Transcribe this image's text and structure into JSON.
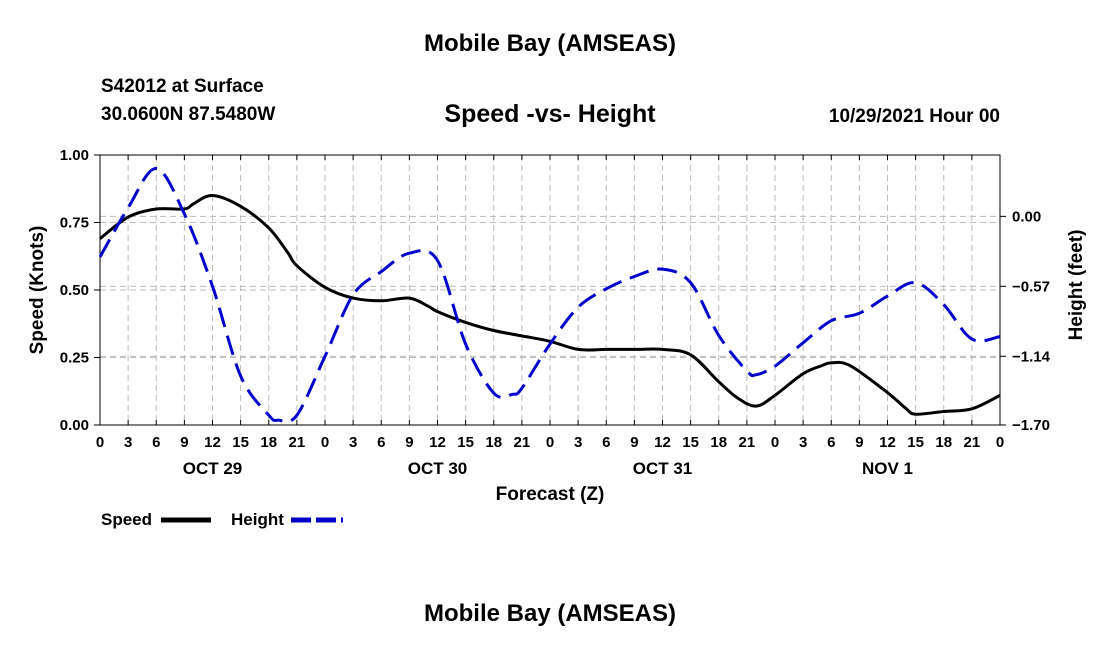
{
  "header": {
    "title": "Mobile Bay (AMSEAS)",
    "station": "S42012 at Surface",
    "coords": "30.0600N  87.5480W",
    "subtitle": "Speed -vs- Height",
    "datetime": "10/29/2021 Hour 00"
  },
  "footer": {
    "title": "Mobile Bay (AMSEAS)"
  },
  "legend": {
    "speed": "Speed",
    "height": "Height"
  },
  "colors": {
    "speed": "#000000",
    "height": "#0000cc",
    "grid": "#bbbbbb"
  },
  "chart_data": {
    "type": "line",
    "title": "Speed -vs- Height",
    "xlabel": "Forecast (Z)",
    "ylabel_left": "Speed (Knots)",
    "ylabel_right": "Height (feet)",
    "x_range_hours": [
      0,
      96
    ],
    "x_tick_step_hours": 3,
    "x_tick_labels": [
      "0",
      "3",
      "6",
      "9",
      "12",
      "15",
      "18",
      "21",
      "0",
      "3",
      "6",
      "9",
      "12",
      "15",
      "18",
      "21",
      "0",
      "3",
      "6",
      "9",
      "12",
      "15",
      "18",
      "21",
      "0",
      "3",
      "6",
      "9",
      "12",
      "15",
      "18",
      "21",
      "0"
    ],
    "day_labels": [
      {
        "label": "OCT 29",
        "hour": 12
      },
      {
        "label": "OCT 30",
        "hour": 36
      },
      {
        "label": "OCT 31",
        "hour": 60
      },
      {
        "label": "NOV 1",
        "hour": 84
      }
    ],
    "ylim_left": [
      0,
      1
    ],
    "yticks_left": [
      0,
      0.25,
      0.5,
      0.75,
      1
    ],
    "ytick_labels_left": [
      "0.00",
      "0.25",
      "0.50",
      "0.75",
      "1.00"
    ],
    "ylim_right": [
      -1.7,
      0.5
    ],
    "yticks_right": [
      0.0,
      -0.57,
      -1.14,
      -1.7
    ],
    "ytick_labels_right": [
      "0.00",
      "−0.57",
      "−1.14",
      "−1.70"
    ],
    "grid": true,
    "series": [
      {
        "name": "Speed",
        "axis": "left",
        "style": "solid",
        "x": [
          0,
          3,
          6,
          9,
          10,
          12,
          15,
          18,
          20,
          21,
          24,
          27,
          30,
          33,
          35,
          36,
          39,
          42,
          45,
          48,
          51,
          54,
          57,
          60,
          63,
          66,
          68,
          70,
          72,
          75,
          77,
          78,
          80,
          84,
          86,
          87,
          90,
          93,
          96
        ],
        "y": [
          0.69,
          0.77,
          0.8,
          0.8,
          0.82,
          0.85,
          0.81,
          0.73,
          0.64,
          0.59,
          0.51,
          0.47,
          0.46,
          0.47,
          0.44,
          0.42,
          0.38,
          0.35,
          0.33,
          0.31,
          0.28,
          0.28,
          0.28,
          0.28,
          0.26,
          0.16,
          0.1,
          0.07,
          0.11,
          0.19,
          0.22,
          0.23,
          0.22,
          0.12,
          0.06,
          0.04,
          0.05,
          0.06,
          0.11
        ]
      },
      {
        "name": "Height",
        "axis": "right",
        "style": "dashed",
        "x": [
          0,
          3,
          6,
          9,
          12,
          15,
          18,
          19,
          21,
          24,
          27,
          30,
          33,
          36,
          39,
          42,
          44,
          45,
          48,
          51,
          54,
          57,
          60,
          63,
          66,
          69,
          70,
          72,
          75,
          78,
          81,
          84,
          87,
          90,
          93,
          96
        ],
        "y": [
          -0.33,
          0.07,
          0.39,
          0.02,
          -0.57,
          -1.3,
          -1.62,
          -1.66,
          -1.62,
          -1.14,
          -0.64,
          -0.45,
          -0.3,
          -0.36,
          -1.04,
          -1.44,
          -1.45,
          -1.4,
          -1.04,
          -0.74,
          -0.59,
          -0.49,
          -0.43,
          -0.54,
          -0.97,
          -1.26,
          -1.29,
          -1.22,
          -1.03,
          -0.85,
          -0.79,
          -0.65,
          -0.54,
          -0.72,
          -1.0,
          -0.98
        ]
      }
    ]
  }
}
